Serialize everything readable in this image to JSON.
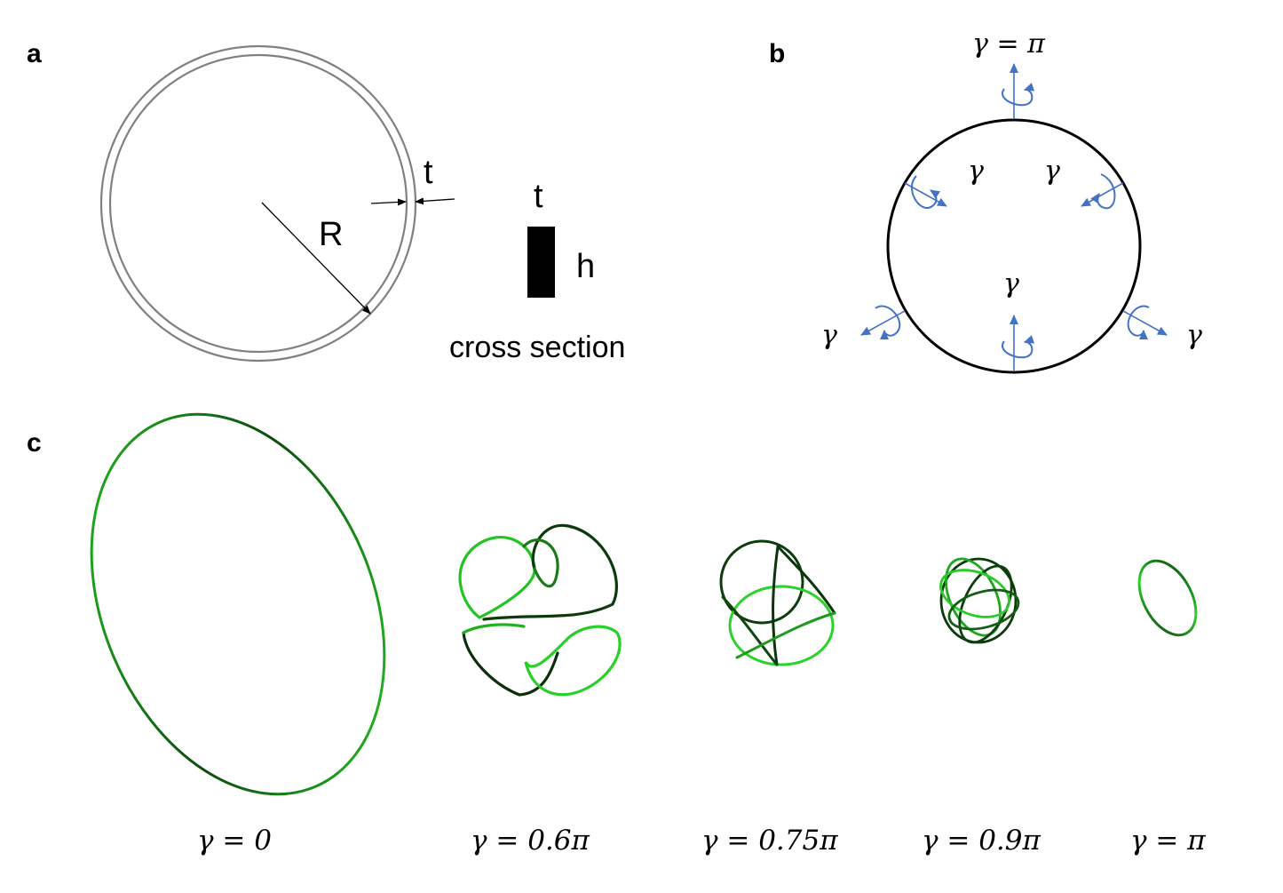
{
  "panels": {
    "a": {
      "letter": "a",
      "labels": {
        "t_thickness": "t",
        "radius": "R",
        "t_cross": "t",
        "h": "h",
        "cross_section": "cross section"
      }
    },
    "b": {
      "letter": "b",
      "top_label": "γ = π",
      "gamma": "γ"
    },
    "c": {
      "letter": "c",
      "captions": [
        "γ = 0",
        "γ = 0.6π",
        "γ = 0.75π",
        "γ = 0.9π",
        "γ = π"
      ]
    }
  },
  "colors": {
    "ring": "#808080",
    "arrow_blue": "#4472C4",
    "loop_green": "#22cc22",
    "loop_dark": "#0b3d0b",
    "black": "#000000"
  }
}
